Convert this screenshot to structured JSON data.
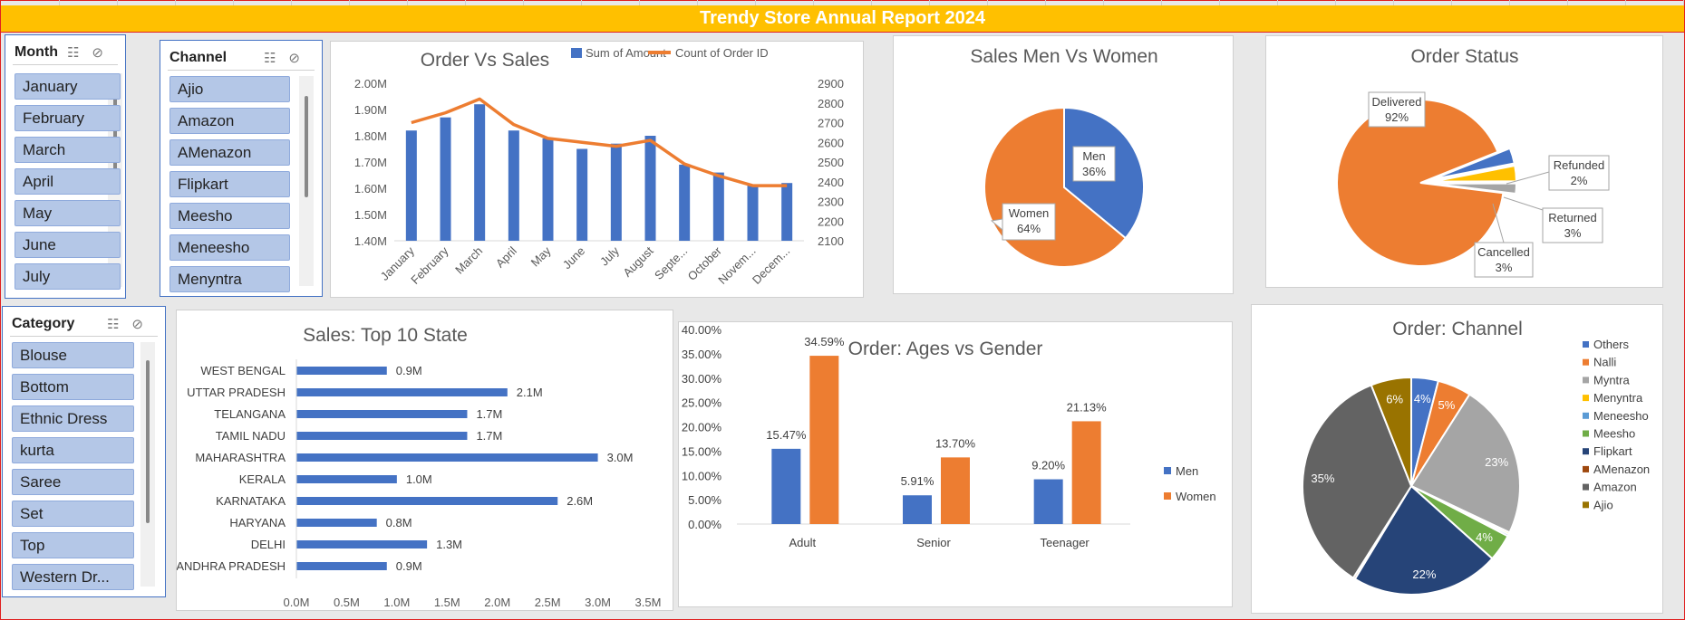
{
  "header": {
    "title": "Trendy Store Annual Report 2024"
  },
  "slicers": {
    "month": {
      "title": "Month",
      "items": [
        "January",
        "February",
        "March",
        "April",
        "May",
        "June",
        "July"
      ]
    },
    "channel": {
      "title": "Channel",
      "items": [
        "Ajio",
        "Amazon",
        "AMenazon",
        "Flipkart",
        "Meesho",
        "Meneesho",
        "Menyntra"
      ]
    },
    "category": {
      "title": "Category",
      "items": [
        "Blouse",
        "Bottom",
        "Ethnic Dress",
        "kurta",
        "Saree",
        "Set",
        "Top",
        "Western Dr..."
      ]
    }
  },
  "icons": {
    "multi_select": "multi-select-icon",
    "clear_filter": "clear-filter-icon"
  },
  "colors": {
    "blue": "#4472c4",
    "orange": "#ed7d31",
    "gray": "#a5a5a5",
    "yellow": "#ffc000",
    "green": "#70ad47",
    "navy": "#264478",
    "darkgray": "#636363",
    "gold": "#997300",
    "lightblue": "#5b9bd5",
    "brown": "#9e480e"
  },
  "chart_data": [
    {
      "id": "order_vs_sales",
      "type": "bar",
      "title": "Order Vs Sales",
      "categories": [
        "January",
        "February",
        "March",
        "April",
        "May",
        "June",
        "July",
        "August",
        "Septe...",
        "October",
        "Novem...",
        "Decem..."
      ],
      "series": [
        {
          "name": "Sum of Amount",
          "type": "bar",
          "axis": "left",
          "values": [
            1.82,
            1.87,
            1.92,
            1.82,
            1.79,
            1.75,
            1.77,
            1.8,
            1.69,
            1.66,
            1.61,
            1.62
          ]
        },
        {
          "name": "Count of Order ID",
          "type": "line",
          "axis": "right",
          "values": [
            2700,
            2750,
            2820,
            2690,
            2620,
            2600,
            2580,
            2610,
            2490,
            2430,
            2380,
            2380
          ]
        }
      ],
      "y_left": {
        "ticks": [
          "1.40M",
          "1.50M",
          "1.60M",
          "1.70M",
          "1.80M",
          "1.90M",
          "2.00M"
        ],
        "lim": [
          1.4,
          2.0
        ]
      },
      "y_right": {
        "ticks": [
          "2100",
          "2200",
          "2300",
          "2400",
          "2500",
          "2600",
          "2700",
          "2800",
          "2900"
        ],
        "lim": [
          2100,
          2900
        ]
      },
      "legend": "top"
    },
    {
      "id": "sales_men_women",
      "type": "pie",
      "title": "Sales Men Vs Women",
      "labels": [
        "Men",
        "Women"
      ],
      "values": [
        36,
        64
      ],
      "display": [
        "36%",
        "64%"
      ]
    },
    {
      "id": "order_status",
      "type": "pie",
      "title": "Order Status",
      "labels": [
        "Delivered",
        "Refunded",
        "Returned",
        "Cancelled"
      ],
      "values": [
        92,
        2,
        3,
        3
      ],
      "display": [
        "92%",
        "2%",
        "3%",
        "3%"
      ]
    },
    {
      "id": "top10_state",
      "type": "bar",
      "orientation": "horizontal",
      "title": "Sales: Top 10 State",
      "categories": [
        "WEST BENGAL",
        "UTTAR PRADESH",
        "TELANGANA",
        "TAMIL NADU",
        "MAHARASHTRA",
        "KERALA",
        "KARNATAKA",
        "HARYANA",
        "DELHI",
        "ANDHRA PRADESH"
      ],
      "values": [
        0.9,
        2.1,
        1.7,
        1.7,
        3.0,
        1.0,
        2.6,
        0.8,
        1.3,
        0.9
      ],
      "value_labels": [
        "0.9M",
        "2.1M",
        "1.7M",
        "1.7M",
        "3.0M",
        "1.0M",
        "2.6M",
        "0.8M",
        "1.3M",
        "0.9M"
      ],
      "x_ticks": [
        "0.0M",
        "0.5M",
        "1.0M",
        "1.5M",
        "2.0M",
        "2.5M",
        "3.0M",
        "3.5M"
      ],
      "xlim": [
        0,
        3.5
      ]
    },
    {
      "id": "ages_gender",
      "type": "bar",
      "title": "Order: Ages vs Gender",
      "categories": [
        "Adult",
        "Senior",
        "Teenager"
      ],
      "series": [
        {
          "name": "Men",
          "values": [
            15.47,
            5.91,
            9.2
          ],
          "labels": [
            "15.47%",
            "5.91%",
            "9.20%"
          ]
        },
        {
          "name": "Women",
          "values": [
            34.59,
            13.7,
            21.13
          ],
          "labels": [
            "34.59%",
            "13.70%",
            "21.13%"
          ]
        }
      ],
      "y_ticks": [
        "0.00%",
        "5.00%",
        "10.00%",
        "15.00%",
        "20.00%",
        "25.00%",
        "30.00%",
        "35.00%",
        "40.00%"
      ],
      "ylim": [
        0,
        40
      ],
      "legend": "right"
    },
    {
      "id": "order_channel",
      "type": "pie",
      "title": "Order: Channel",
      "labels": [
        "Others",
        "Nalli",
        "Myntra",
        "Menyntra",
        "Meneesho",
        "Meesho",
        "Flipkart",
        "AMenazon",
        "Amazon",
        "Ajio"
      ],
      "values": [
        4,
        5,
        23,
        0.3,
        0.3,
        4,
        22,
        0.3,
        35,
        6
      ],
      "display": [
        "4%",
        "5%",
        "23%",
        "",
        "",
        "4%",
        "22%",
        "",
        "35%",
        "6%"
      ],
      "legend": "right"
    }
  ]
}
